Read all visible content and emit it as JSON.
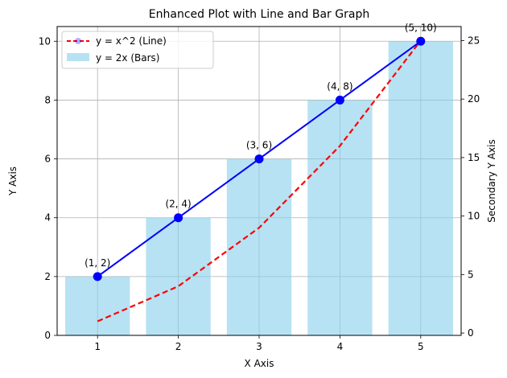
{
  "chart_data": {
    "type": "bar",
    "title": "Enhanced Plot with Line and Bar Graph",
    "xlabel": "X Axis",
    "ylabel": "Y Axis",
    "y2label": "Secondary Y Axis",
    "xlim": [
      0.5,
      5.5
    ],
    "ylim": [
      0,
      10.5
    ],
    "y2lim": [
      -0.2,
      26.2
    ],
    "x_ticks": [
      1,
      2,
      3,
      4,
      5
    ],
    "y_ticks": [
      0,
      2,
      4,
      6,
      8,
      10
    ],
    "y2_ticks": [
      0,
      5,
      10,
      15,
      20,
      25
    ],
    "grid": true,
    "legend_position": "top-left",
    "x": [
      1,
      2,
      3,
      4,
      5
    ],
    "series": [
      {
        "name": "y = 2x (Bars)",
        "kind": "bar",
        "axis": "left",
        "values": [
          2,
          4,
          6,
          8,
          10
        ],
        "color": "#87ceeb"
      },
      {
        "name": "",
        "kind": "line-markers",
        "axis": "left",
        "values": [
          2,
          4,
          6,
          8,
          10
        ],
        "color": "#0000ff",
        "point_labels": [
          "(1, 2)",
          "(2, 4)",
          "(3, 6)",
          "(4, 8)",
          "(5, 10)"
        ]
      },
      {
        "name": "y = x^2 (Line)",
        "kind": "line-dashed",
        "axis": "right",
        "values": [
          1,
          4,
          9,
          16,
          25
        ],
        "color": "#ff0000"
      }
    ]
  }
}
